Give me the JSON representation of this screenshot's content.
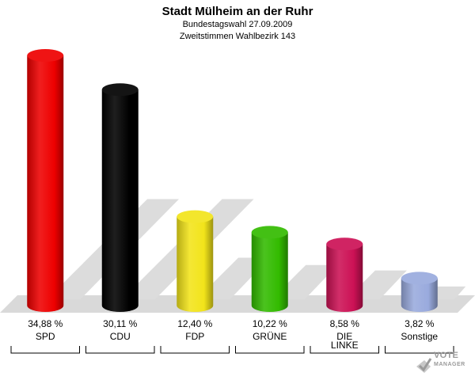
{
  "header": {
    "title": "Stadt Mülheim an der Ruhr",
    "subtitle": "Bundestagswahl 27.09.2009",
    "subtitle2": "Zweitstimmen Wahlbezirk 143"
  },
  "chart_data": {
    "type": "bar",
    "categories": [
      "SPD",
      "CDU",
      "FDP",
      "GRÜNE",
      "DIE LINKE",
      "Sonstige"
    ],
    "category_lines": [
      [
        "SPD"
      ],
      [
        "CDU"
      ],
      [
        "FDP"
      ],
      [
        "GRÜNE"
      ],
      [
        "DIE",
        "LINKE"
      ],
      [
        "Sonstige"
      ]
    ],
    "values": [
      34.88,
      30.11,
      12.4,
      10.22,
      8.58,
      3.82
    ],
    "value_labels": [
      "34,88 %",
      "30,11 %",
      "12,40 %",
      "10,22 %",
      "8,58 %",
      "3,82 %"
    ],
    "colors": [
      "#ee0000",
      "#000000",
      "#f2e41a",
      "#33bb00",
      "#cc1155",
      "#99aadd"
    ],
    "ylim": [
      0,
      35
    ],
    "grid": false,
    "legend": "none"
  },
  "logo": {
    "line1": "VOTE",
    "line2": "MANAGER",
    "icon": "checkmark-ballot-icon"
  }
}
